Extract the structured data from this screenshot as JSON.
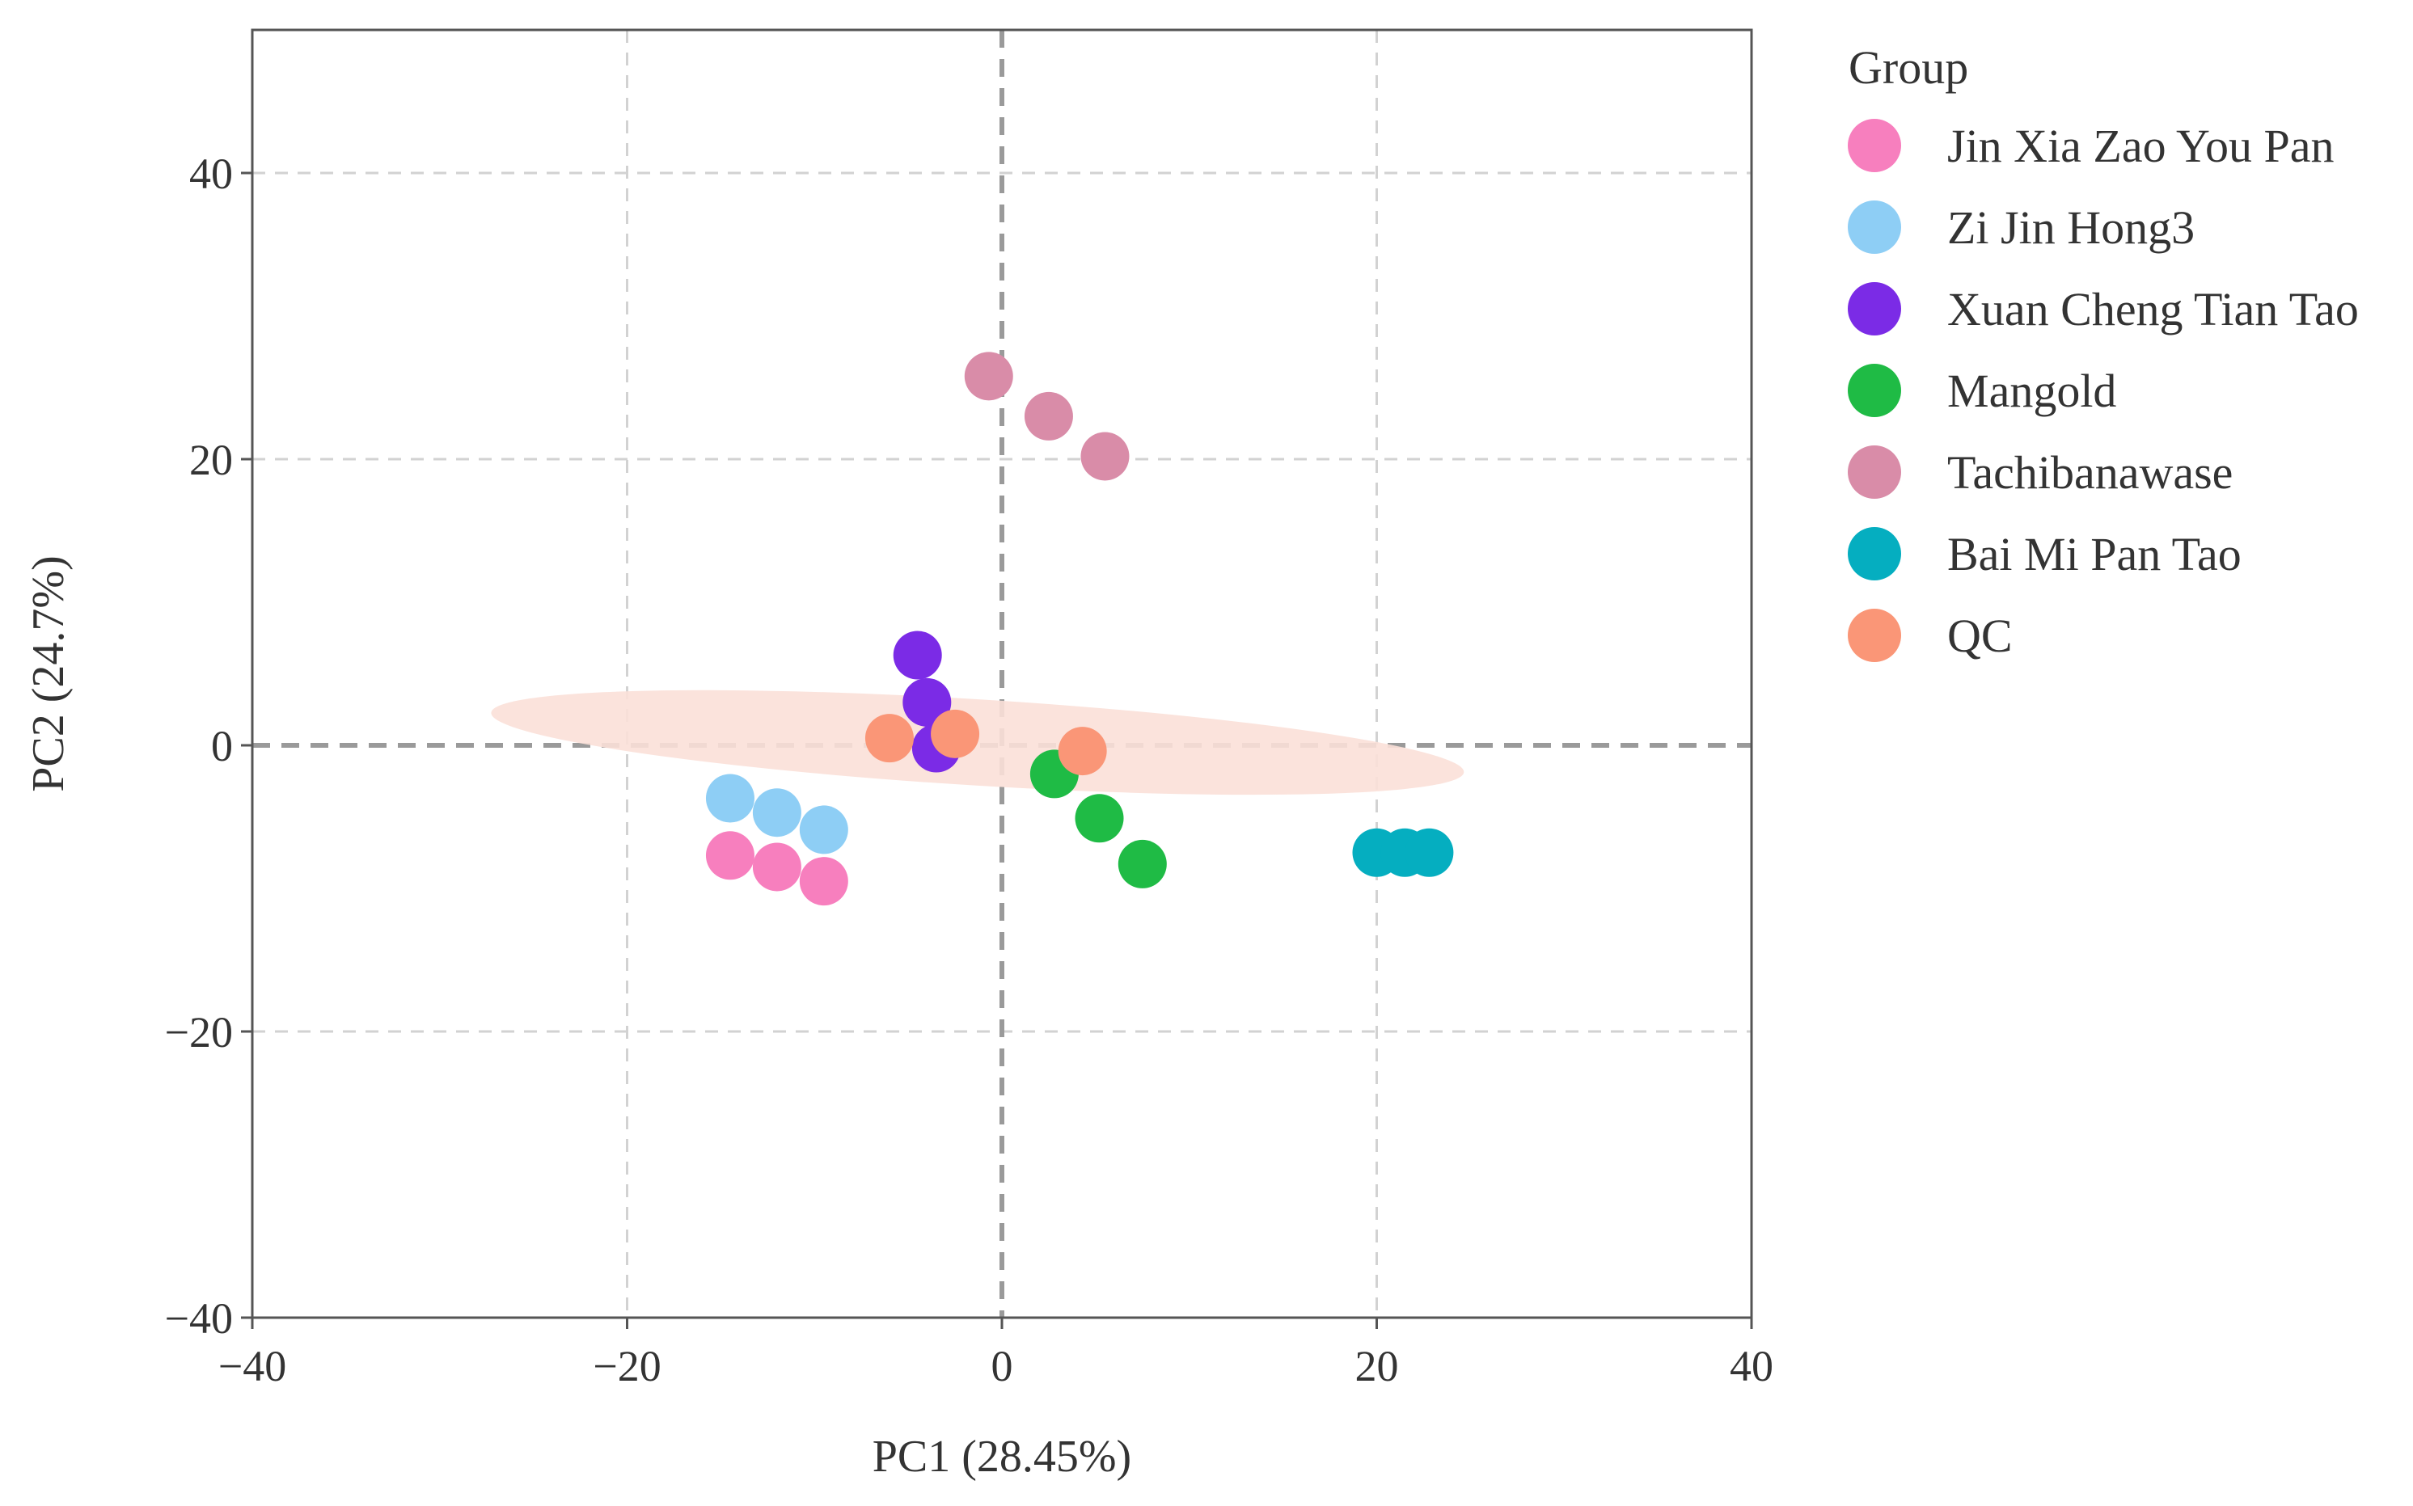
{
  "chart_data": {
    "type": "scatter",
    "title": "",
    "xlabel": "PC1 (28.45%)",
    "ylabel": "PC2 (24.7%)",
    "xlim": [
      -40,
      40
    ],
    "ylim": [
      -40,
      50
    ],
    "xticks": [
      -40,
      -20,
      0,
      20,
      40
    ],
    "yticks": [
      -40,
      -20,
      0,
      20,
      40
    ],
    "xtick_labels": [
      "−40",
      "−20",
      "0",
      "20",
      "40"
    ],
    "ytick_labels": [
      "−40",
      "−20",
      "0",
      "20",
      "40"
    ],
    "grid": true,
    "legend_title": "Group",
    "legend_position": "right",
    "series": [
      {
        "name": "Jin Xia Zao You Pan",
        "color": "#f77fbe",
        "points": [
          [
            -14.5,
            -7.7
          ],
          [
            -12.0,
            -8.5
          ],
          [
            -9.5,
            -9.5
          ]
        ]
      },
      {
        "name": "Zi Jin Hong3",
        "color": "#8ecef5",
        "points": [
          [
            -14.5,
            -3.7
          ],
          [
            -12.0,
            -4.7
          ],
          [
            -9.5,
            -5.9
          ]
        ]
      },
      {
        "name": "Xuan Cheng Tian Tao",
        "color": "#7b2be6",
        "points": [
          [
            -4.5,
            6.3
          ],
          [
            -4.0,
            3.0
          ],
          [
            -3.5,
            -0.2
          ]
        ]
      },
      {
        "name": "Mangold",
        "color": "#1fbb45",
        "points": [
          [
            2.8,
            -2.0
          ],
          [
            5.2,
            -5.1
          ],
          [
            7.5,
            -8.3
          ]
        ]
      },
      {
        "name": "Tachibanawase",
        "color": "#d98ca8",
        "points": [
          [
            -0.7,
            25.8
          ],
          [
            2.5,
            23.0
          ],
          [
            5.5,
            20.2
          ]
        ]
      },
      {
        "name": "Bai Mi Pan Tao",
        "color": "#05aec0",
        "points": [
          [
            20.0,
            -7.5
          ],
          [
            21.5,
            -7.5
          ],
          [
            22.8,
            -7.5
          ]
        ]
      },
      {
        "name": "QC",
        "color": "#fa9677",
        "points": [
          [
            -6.0,
            0.5
          ],
          [
            -2.5,
            0.8
          ],
          [
            4.3,
            -0.4
          ]
        ]
      }
    ],
    "ellipse": {
      "series": "QC",
      "color": "#fbe0d8",
      "center": [
        -1.3,
        0.2
      ],
      "semi_major": 26.0,
      "semi_minor": 2.3,
      "angle_deg": -3.5
    }
  }
}
